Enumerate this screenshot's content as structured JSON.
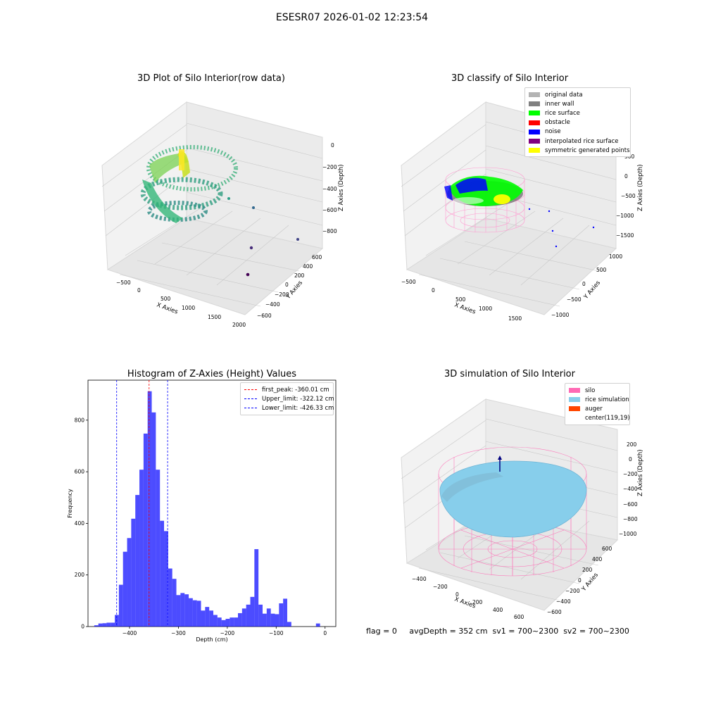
{
  "suptitle": "ESESR07 2026-01-02 12:23:54",
  "panel_raw": {
    "title": "3D Plot of Silo Interior(row data)",
    "xlabel": "X Axies",
    "ylabel": "Y Axies",
    "zlabel": "Z Axies (Depth)",
    "x_ticks": [
      "−500",
      "0",
      "500",
      "1000",
      "1500",
      "2000"
    ],
    "y_ticks": [
      "−600",
      "−400",
      "−200",
      "0",
      "200",
      "400",
      "600"
    ],
    "z_ticks": [
      "0",
      "−200",
      "−400",
      "−600",
      "−800"
    ]
  },
  "panel_classify": {
    "title": "3D classify of Silo Interior",
    "xlabel": "X Axies",
    "ylabel": "Y Axies",
    "zlabel": "Z Axies (Depth)",
    "x_ticks": [
      "−500",
      "0",
      "500",
      "1000",
      "1500"
    ],
    "y_ticks": [
      "−1000",
      "−500",
      "0",
      "500",
      "1000"
    ],
    "z_ticks": [
      "500",
      "0",
      "−500",
      "−1000",
      "−1500"
    ],
    "legend": [
      {
        "label": "original data",
        "color": "#b3b3b3"
      },
      {
        "label": "inner wall",
        "color": "#808080"
      },
      {
        "label": "rice surface",
        "color": "#00ff00"
      },
      {
        "label": "obstacle",
        "color": "#ff0000"
      },
      {
        "label": "noise",
        "color": "#0000ff"
      },
      {
        "label": "interpolated rice surface",
        "color": "#800080"
      },
      {
        "label": "symmetric generated points",
        "color": "#ffff00"
      }
    ]
  },
  "panel_sim": {
    "title": "3D simulation of Silo Interior",
    "xlabel": "X Axies",
    "ylabel": "Y Axies",
    "zlabel": "Z Axies (Depth)",
    "x_ticks": [
      "−400",
      "−200",
      "0",
      "200",
      "400",
      "600"
    ],
    "y_ticks": [
      "−600",
      "−400",
      "−200",
      "0",
      "200",
      "400",
      "600"
    ],
    "z_ticks": [
      "200",
      "0",
      "−200",
      "−400",
      "−600",
      "−800",
      "−1000"
    ],
    "legend": [
      {
        "label": "silo",
        "color": "#ff69b4"
      },
      {
        "label": "rice simulation",
        "color": "#87ceeb"
      },
      {
        "label": "auger",
        "color": "#ff4500"
      },
      {
        "label": "center(119,19)",
        "color": "#ffffff"
      }
    ]
  },
  "status_text": "flag = 0     avgDepth = 352 cm  sv1 = 700~2300  sv2 = 700~2300",
  "chart_data": {
    "type": "bar",
    "title": "Histogram of Z-Axies (Height) Values",
    "xlabel": "Depth (cm)",
    "ylabel": "Frequency",
    "bar_color": "#0000ff",
    "bin_width": 8.4,
    "bin_left_edges": [
      -472.2,
      -463.8,
      -455.4,
      -447.0,
      -438.6,
      -430.2,
      -421.8,
      -413.4,
      -405.0,
      -396.6,
      -388.2,
      -379.8,
      -371.4,
      -363.0,
      -354.6,
      -346.2,
      -337.8,
      -329.4,
      -321.0,
      -312.6,
      -304.2,
      -295.8,
      -287.4,
      -279.0,
      -270.6,
      -262.2,
      -253.8,
      -245.4,
      -237.0,
      -228.6,
      -220.2,
      -211.8,
      -203.4,
      -195.0,
      -186.6,
      -178.2,
      -169.8,
      -161.4,
      -153.0,
      -144.6,
      -136.2,
      -127.8,
      -119.4,
      -111.0,
      -102.6,
      -94.2,
      -85.8,
      -77.4,
      -69.0,
      -60.6,
      -52.2,
      -43.8,
      -35.4,
      -27.0,
      -18.6,
      -10.2,
      -1.8
    ],
    "values": [
      5,
      12,
      13,
      15,
      15,
      45,
      162,
      290,
      343,
      418,
      510,
      608,
      748,
      912,
      830,
      608,
      410,
      370,
      225,
      185,
      122,
      130,
      125,
      110,
      102,
      100,
      62,
      76,
      62,
      45,
      35,
      25,
      30,
      35,
      35,
      52,
      70,
      85,
      115,
      300,
      85,
      50,
      70,
      50,
      48,
      90,
      108,
      18,
      0,
      0,
      0,
      0,
      0,
      0,
      12,
      0,
      0
    ],
    "xlim": [
      -485,
      22
    ],
    "ylim": [
      0,
      955
    ],
    "x_ticks": [
      -400,
      -300,
      -200,
      -100,
      0
    ],
    "y_ticks": [
      0,
      200,
      400,
      600,
      800
    ],
    "vlines": [
      {
        "label": "first_peak: -360.01 cm",
        "x": -360.01,
        "color": "#ff0000"
      },
      {
        "label": "Upper_limit: -322.12 cm",
        "x": -322.12,
        "color": "#0000ff"
      },
      {
        "label": "Lower_limit: -426.33 cm",
        "x": -426.33,
        "color": "#0000ff"
      }
    ],
    "legend_position": "top-right"
  }
}
